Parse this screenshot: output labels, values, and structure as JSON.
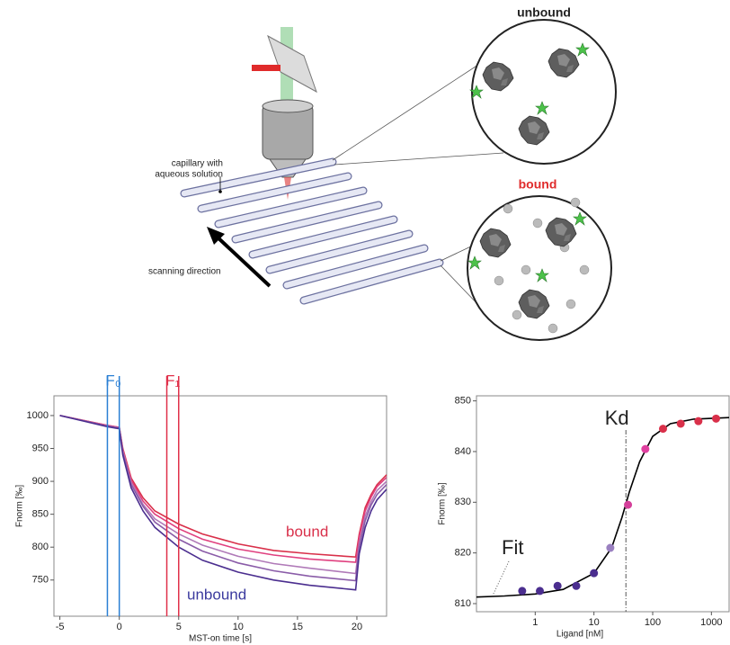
{
  "diagram": {
    "unbound": "unbound",
    "bound": "bound",
    "capillary": [
      "capillary with",
      "aqueous solution"
    ],
    "scanning": "scanning direction"
  },
  "chart_data": [
    {
      "type": "line",
      "x_label": "MST-on time [s]",
      "y_label": "Fnorm [‰]",
      "xlim": [
        -5.5,
        22.5
      ],
      "ylim": [
        695,
        1030
      ],
      "xticks": [
        -5,
        0,
        5,
        10,
        15,
        20
      ],
      "yticks": [
        750,
        800,
        850,
        900,
        950,
        1000
      ],
      "x": [
        -5,
        -1,
        0,
        0.3,
        1,
        2,
        3,
        5,
        7,
        10,
        13,
        16,
        19.9,
        20.2,
        20.7,
        21.2,
        21.7,
        22.5
      ],
      "series": [
        {
          "color": "#d9304a",
          "values": [
            1000,
            985,
            982,
            950,
            905,
            875,
            855,
            835,
            820,
            805,
            795,
            790,
            785,
            820,
            860,
            880,
            895,
            910
          ]
        },
        {
          "color": "#e0407f",
          "values": [
            1000,
            985,
            982,
            948,
            902,
            870,
            850,
            828,
            812,
            797,
            788,
            782,
            777,
            815,
            855,
            876,
            892,
            906
          ]
        },
        {
          "color": "#b07ab8",
          "values": [
            1000,
            984,
            981,
            946,
            898,
            865,
            843,
            820,
            803,
            786,
            775,
            768,
            760,
            805,
            847,
            869,
            886,
            900
          ]
        },
        {
          "color": "#8a5ca8",
          "values": [
            1000,
            984,
            981,
            944,
            895,
            862,
            838,
            812,
            794,
            776,
            764,
            756,
            749,
            800,
            840,
            864,
            880,
            895
          ]
        },
        {
          "color": "#4b2e8f",
          "values": [
            1000,
            983,
            980,
            940,
            890,
            855,
            830,
            800,
            780,
            762,
            750,
            742,
            735,
            790,
            830,
            855,
            872,
            888
          ]
        }
      ],
      "markers": [
        {
          "label": "F₀",
          "x": [
            -1,
            0
          ],
          "color": "#2a7fd4"
        },
        {
          "label": "F₁",
          "x": [
            4,
            5
          ],
          "color": "#e0304a"
        }
      ],
      "annotations": [
        {
          "text": "bound",
          "color": "#d9304a"
        },
        {
          "text": "unbound",
          "color": "#3b3a9e"
        }
      ]
    },
    {
      "type": "scatter",
      "x_label": "Ligand [nM]",
      "y_label": "Fnorm [‰]",
      "log_x": true,
      "xlim": [
        0.1,
        2000
      ],
      "ylim": [
        808.4,
        851
      ],
      "xticks": [
        1,
        10,
        100,
        1000
      ],
      "yticks": [
        810,
        820,
        830,
        840,
        850
      ],
      "series": [
        {
          "x": [
            0.6,
            1.2,
            2.4,
            5,
            10,
            19,
            38,
            75,
            150,
            300,
            600,
            1200
          ],
          "values": [
            812.5,
            812.5,
            813.5,
            813.5,
            816,
            821,
            829.5,
            840.5,
            844.5,
            845.5,
            846,
            846.5
          ],
          "colors": [
            "#4b2e8f",
            "#4b2e8f",
            "#4b2e8f",
            "#4b2e8f",
            "#4b2e8f",
            "#9a80c0",
            "#d43f9a",
            "#e040a0",
            "#d9304a",
            "#d9304a",
            "#d9304a",
            "#d9304a"
          ]
        }
      ],
      "fit": {
        "label": "Fit",
        "color": "#000000",
        "x": [
          0.1,
          0.3,
          1,
          3,
          10,
          20,
          30,
          40,
          60,
          100,
          200,
          500,
          2000
        ],
        "values": [
          811.3,
          811.5,
          811.9,
          812.8,
          816,
          821,
          827,
          832,
          838,
          843,
          845.5,
          846.4,
          846.7
        ]
      },
      "kd": {
        "label": "Kd",
        "x": 35
      }
    }
  ]
}
